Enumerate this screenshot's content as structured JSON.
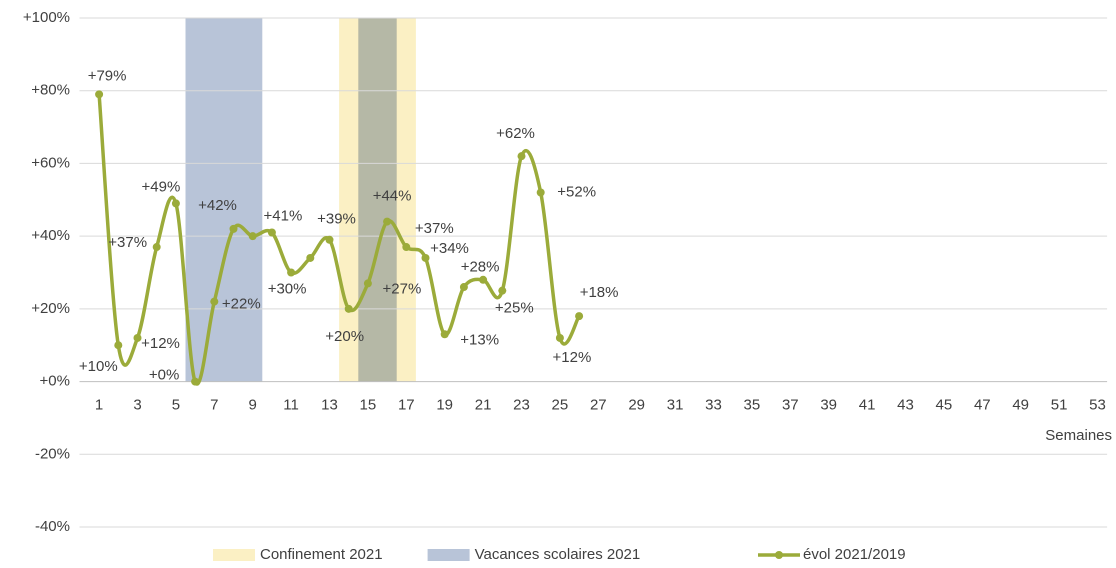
{
  "chart_data": {
    "type": "line",
    "xlabel": "Semaines",
    "categories": [
      1,
      null,
      3,
      null,
      5,
      null,
      7,
      null,
      9,
      null,
      11,
      null,
      13,
      null,
      15,
      null,
      17,
      null,
      19,
      null,
      21,
      null,
      23,
      null,
      25,
      null,
      27,
      null,
      29,
      null,
      31,
      null,
      33,
      null,
      35,
      null,
      37,
      null,
      39,
      null,
      41,
      null,
      43,
      null,
      45,
      null,
      47,
      null,
      49,
      null,
      51,
      null,
      53
    ],
    "series": [
      {
        "name": "évol 2021/2019",
        "color": "#9bab3a",
        "values": [
          79,
          10,
          12,
          37,
          49,
          0,
          22,
          42,
          40,
          41,
          30,
          34,
          39,
          20,
          27,
          44,
          37,
          34,
          13,
          26,
          28,
          25,
          62,
          52,
          12,
          18,
          null,
          null,
          null,
          null,
          null,
          null,
          null,
          null,
          null,
          null,
          null,
          null,
          null,
          null,
          null,
          null,
          null,
          null,
          null,
          null,
          null,
          null,
          null,
          null,
          null,
          null,
          null
        ],
        "value_labels": [
          "+79%",
          "+10%",
          "+12%",
          "+37%",
          "+49%",
          "+0%",
          "+22%",
          "+42%",
          null,
          "+41%",
          "+30%",
          null,
          "+39%",
          "+20%",
          "+27%",
          "+44%",
          "+37%",
          "+34%",
          "+13%",
          null,
          "+28%",
          "+25%",
          "+62%",
          "+52%",
          "+12%",
          "+18%",
          null,
          null,
          null,
          null,
          null,
          null,
          null,
          null,
          null,
          null,
          null,
          null,
          null,
          null,
          null,
          null,
          null,
          null,
          null,
          null,
          null,
          null,
          null,
          null,
          null,
          null,
          null
        ]
      }
    ],
    "bands": [
      {
        "name": "Confinement 2021",
        "color": "#fbf0c4",
        "ranges": [
          [
            14,
            17
          ]
        ]
      },
      {
        "name": "Vacances scolaires 2021",
        "color": "#b8c4d8",
        "ranges": [
          [
            6,
            9
          ],
          [
            15,
            16
          ]
        ]
      }
    ],
    "ylim": [
      -40,
      100
    ],
    "yticks": [
      {
        "value": -40,
        "label": "-40%"
      },
      {
        "value": -20,
        "label": "-20%"
      },
      {
        "value": 0,
        "label": "+0%"
      },
      {
        "value": 20,
        "label": "+20%"
      },
      {
        "value": 40,
        "label": "+40%"
      },
      {
        "value": 60,
        "label": "+60%"
      },
      {
        "value": 80,
        "label": "+80%"
      },
      {
        "value": 100,
        "label": "+100%"
      }
    ],
    "grid": true
  }
}
